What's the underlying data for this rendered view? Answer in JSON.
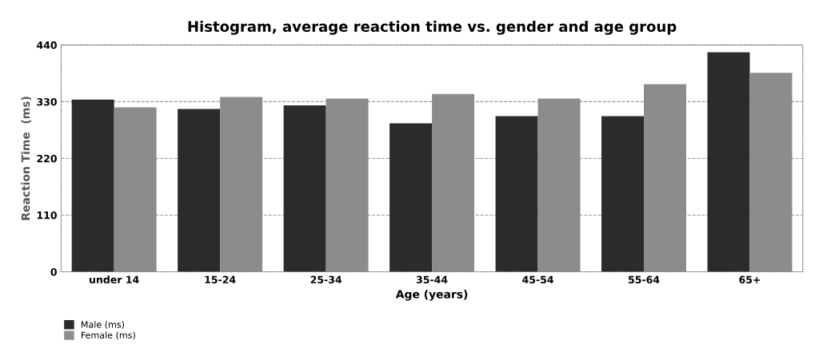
{
  "chart_data": {
    "type": "bar",
    "title": "Histogram, average reaction time vs. gender and age group",
    "xlabel": "Age (years)",
    "ylabel": "Reaction Time  (ms)",
    "categories": [
      "under 14",
      "15-24",
      "25-34",
      "35-44",
      "45-54",
      "55-64",
      "65+"
    ],
    "series": [
      {
        "name": "Male (ms)",
        "color": "#2b2b2b",
        "values": [
          334,
          316,
          323,
          288,
          302,
          302,
          426
        ]
      },
      {
        "name": "Female (ms)",
        "color": "#8c8c8c",
        "values": [
          319,
          339,
          336,
          345,
          336,
          364,
          386
        ]
      }
    ],
    "ylim": [
      0,
      440
    ],
    "yticks": [
      0,
      110,
      220,
      330,
      440
    ],
    "grid": "y",
    "legend": "bottom left"
  }
}
